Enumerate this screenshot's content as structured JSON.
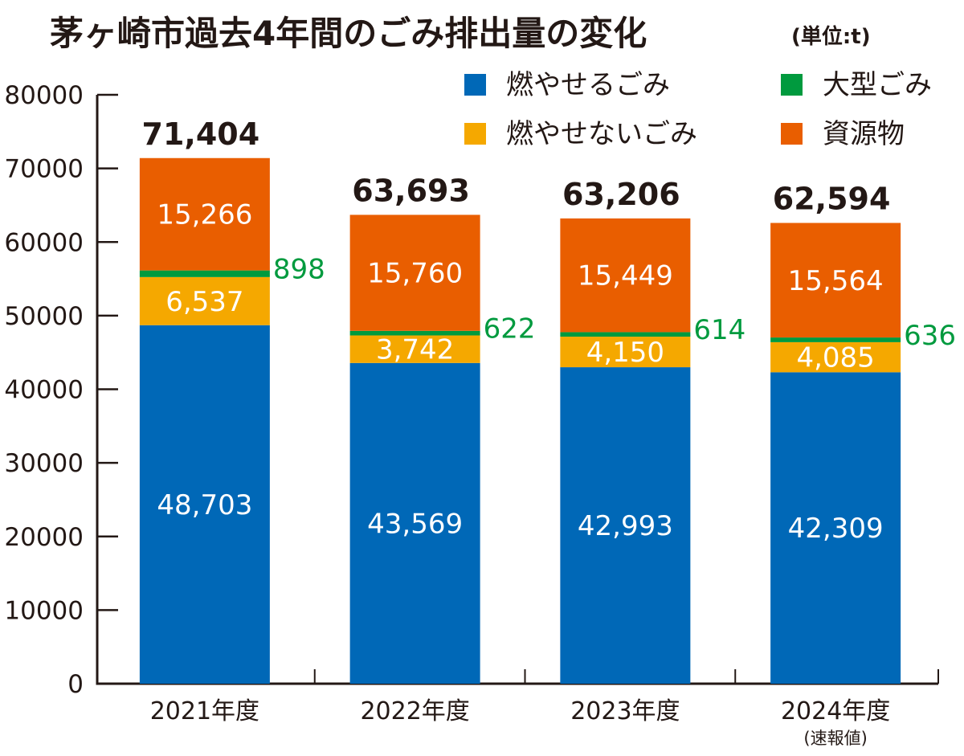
{
  "chart_data": {
    "type": "bar",
    "stacked": true,
    "title": "茅ヶ崎市過去4年間のごみ排出量の変化",
    "unit_note": "(単位:t)",
    "xlabel": "",
    "ylabel": "",
    "ylim": [
      0,
      80000
    ],
    "yticks": [
      0,
      10000,
      20000,
      30000,
      40000,
      50000,
      60000,
      70000,
      80000
    ],
    "ytick_labels": [
      "0",
      "10000",
      "20000",
      "30000",
      "40000",
      "50000",
      "60000",
      "70000",
      "80000"
    ],
    "grid": false,
    "legend_position": "top-right",
    "categories": [
      "2021年度",
      "2022年度",
      "2023年度",
      "2024年度"
    ],
    "category_notes": [
      "",
      "",
      "",
      "(速報値)"
    ],
    "series": [
      {
        "name": "燃やせるごみ",
        "color": "#0068b7",
        "values": [
          48703,
          43569,
          42993,
          42309
        ],
        "labels": [
          "48,703",
          "43,569",
          "42,993",
          "42,309"
        ]
      },
      {
        "name": "燃やせないごみ",
        "color": "#f5a800",
        "values": [
          6537,
          3742,
          4150,
          4085
        ],
        "labels": [
          "6,537",
          "3,742",
          "4,150",
          "4,085"
        ]
      },
      {
        "name": "大型ごみ",
        "color": "#009a3e",
        "values": [
          898,
          622,
          614,
          636
        ],
        "labels": [
          "898",
          "622",
          "614",
          "636"
        ]
      },
      {
        "name": "資源物",
        "color": "#e95e00",
        "values": [
          15266,
          15760,
          15449,
          15564
        ],
        "labels": [
          "15,266",
          "15,760",
          "15,449",
          "15,564"
        ]
      }
    ],
    "totals": [
      71404,
      63693,
      63206,
      62594
    ],
    "total_labels": [
      "71,404",
      "63,693",
      "63,206",
      "62,594"
    ],
    "legend_order": [
      "燃やせるごみ",
      "大型ごみ",
      "燃やせないごみ",
      "資源物"
    ]
  }
}
